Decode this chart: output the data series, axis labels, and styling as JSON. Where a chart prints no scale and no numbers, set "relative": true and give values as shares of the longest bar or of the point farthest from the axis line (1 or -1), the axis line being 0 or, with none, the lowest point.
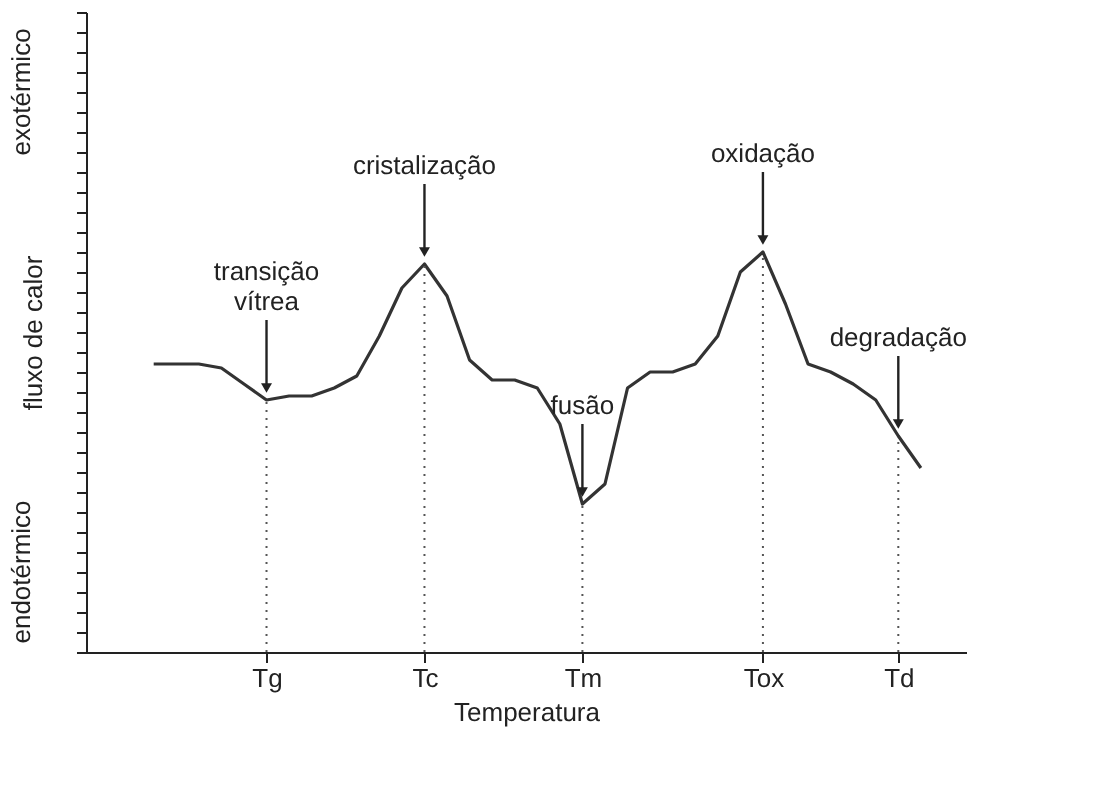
{
  "chart_data": {
    "type": "line",
    "relative": true,
    "xlabel": "Temperatura",
    "ylabel": "fluxo de calor",
    "tick_labels": "x",
    "grid": false,
    "marker": "none",
    "line_style": "solid",
    "categories": [
      null,
      null,
      null,
      null,
      null,
      "Tg",
      null,
      null,
      null,
      null,
      null,
      null,
      "Tc",
      null,
      null,
      null,
      null,
      null,
      null,
      "Tm",
      null,
      null,
      null,
      null,
      null,
      null,
      null,
      "Tox",
      null,
      null,
      null,
      null,
      null,
      "Td",
      null
    ],
    "series": [
      {
        "color": "#333333",
        "values": [
          0.72,
          0.72,
          0.72,
          0.71,
          0.67,
          0.63,
          0.64,
          0.64,
          0.66,
          0.69,
          0.79,
          0.91,
          0.97,
          0.89,
          0.73,
          0.68,
          0.68,
          0.66,
          0.57,
          0.37,
          0.42,
          0.66,
          0.7,
          0.7,
          0.72,
          0.79,
          0.95,
          1,
          0.87,
          0.72,
          0.7,
          0.67,
          0.63,
          0.54,
          0.46
        ]
      }
    ],
    "ref_lines": [
      {
        "axis": "x",
        "value": "Tg",
        "line_style": "dotted"
      },
      {
        "axis": "x",
        "value": "Tc",
        "line_style": "dotted"
      },
      {
        "axis": "x",
        "value": "Tm",
        "line_style": "dotted"
      },
      {
        "axis": "x",
        "value": "Tox",
        "line_style": "dotted"
      },
      {
        "axis": "x",
        "value": "Td",
        "line_style": "dotted"
      }
    ],
    "annotations": [
      {
        "text": "transição vítrea",
        "x": "Tg",
        "y": 0.63
      },
      {
        "text": "cristalização",
        "x": "Tc",
        "y": 0.97
      },
      {
        "text": "fusão",
        "x": "Tm",
        "y": 0.37
      },
      {
        "text": "oxidação",
        "x": "Tox",
        "y": 1
      },
      {
        "text": "degradação",
        "x": "Td",
        "y": 0.54
      },
      "exotérmico",
      "endotérmico"
    ]
  }
}
